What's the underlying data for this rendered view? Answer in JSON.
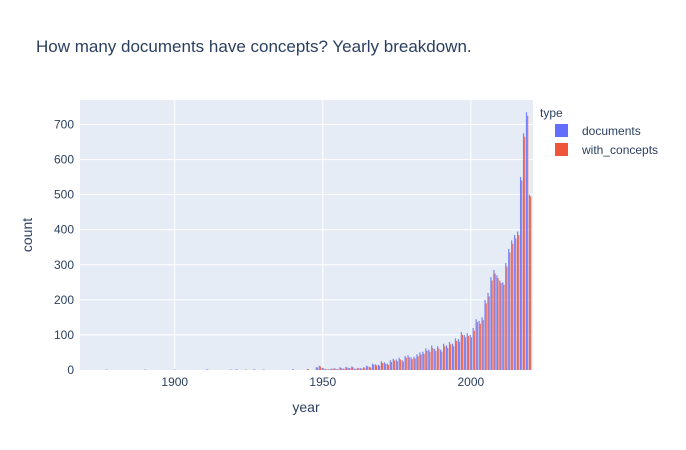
{
  "chart_data": {
    "type": "bar",
    "title": "How many documents have concepts? Yearly breakdown.",
    "xlabel": "year",
    "ylabel": "count",
    "xlim": [
      1868,
      2021
    ],
    "ylim": [
      0,
      770
    ],
    "x_ticks": [
      1900,
      1950,
      2000
    ],
    "y_ticks": [
      0,
      100,
      200,
      300,
      400,
      500,
      600,
      700
    ],
    "grid": true,
    "barmode": "group",
    "legend": {
      "title": "type",
      "placement": "top-right"
    },
    "x": [
      1877,
      1890,
      1900,
      1911,
      1919,
      1921,
      1924,
      1927,
      1930,
      1940,
      1945,
      1948,
      1949,
      1950,
      1951,
      1952,
      1953,
      1954,
      1955,
      1956,
      1957,
      1958,
      1959,
      1960,
      1961,
      1962,
      1963,
      1964,
      1965,
      1966,
      1967,
      1968,
      1969,
      1970,
      1971,
      1972,
      1973,
      1974,
      1975,
      1976,
      1977,
      1978,
      1979,
      1980,
      1981,
      1982,
      1983,
      1984,
      1985,
      1986,
      1987,
      1988,
      1989,
      1990,
      1991,
      1992,
      1993,
      1994,
      1995,
      1996,
      1997,
      1998,
      1999,
      2000,
      2001,
      2002,
      2003,
      2004,
      2005,
      2006,
      2007,
      2008,
      2009,
      2010,
      2011,
      2012,
      2013,
      2014,
      2015,
      2016,
      2017,
      2018,
      2019,
      2020
    ],
    "series": [
      {
        "name": "documents",
        "color": "#636efa",
        "values": [
          1,
          1,
          1,
          2,
          1,
          2,
          1,
          2,
          1,
          2,
          3,
          8,
          12,
          6,
          3,
          2,
          4,
          5,
          3,
          8,
          4,
          9,
          6,
          10,
          4,
          6,
          5,
          8,
          12,
          9,
          18,
          16,
          15,
          25,
          22,
          18,
          28,
          32,
          30,
          35,
          28,
          40,
          42,
          36,
          38,
          45,
          50,
          52,
          62,
          58,
          70,
          60,
          68,
          58,
          75,
          70,
          80,
          75,
          90,
          88,
          108,
          100,
          105,
          100,
          120,
          145,
          140,
          150,
          200,
          220,
          265,
          285,
          270,
          255,
          250,
          305,
          345,
          370,
          385,
          395,
          550,
          675,
          735,
          500
        ]
      },
      {
        "name": "with_concepts",
        "color": "#ef553b",
        "values": [
          1,
          1,
          1,
          1,
          1,
          1,
          1,
          1,
          1,
          1,
          2,
          7,
          10,
          5,
          2,
          2,
          3,
          4,
          2,
          6,
          3,
          7,
          5,
          8,
          3,
          5,
          4,
          6,
          10,
          7,
          15,
          13,
          12,
          20,
          18,
          15,
          23,
          27,
          25,
          30,
          24,
          35,
          36,
          31,
          33,
          39,
          44,
          46,
          55,
          52,
          62,
          54,
          61,
          52,
          68,
          63,
          73,
          68,
          83,
          81,
          100,
          93,
          97,
          93,
          112,
          137,
          132,
          142,
          190,
          210,
          255,
          275,
          262,
          248,
          243,
          295,
          335,
          360,
          375,
          385,
          540,
          665,
          725,
          495
        ]
      }
    ]
  }
}
